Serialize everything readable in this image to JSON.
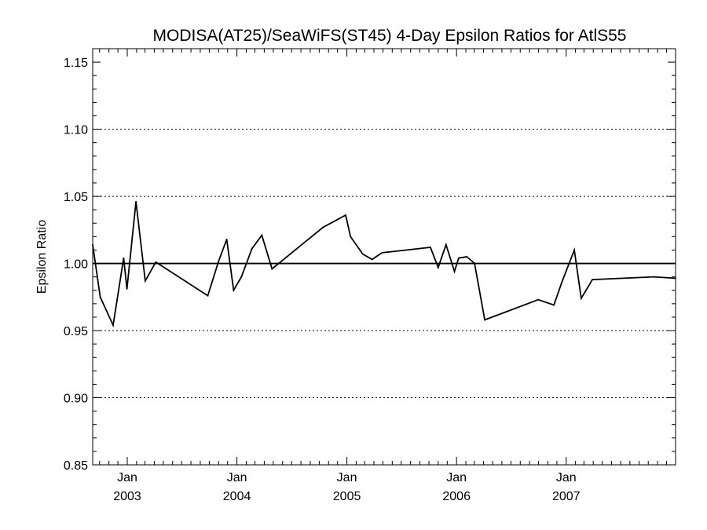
{
  "chart_data": {
    "type": "line",
    "title": "MODISA(AT25)/SeaWiFS(ST45) 4-Day Epsilon Ratios for AtlS55",
    "ylabel": "Epsilon Ratio",
    "xlabel": "",
    "ylim": [
      0.85,
      1.16
    ],
    "xlim": [
      "2002-09-08",
      "2007-12-31"
    ],
    "yticks": [
      "0.85",
      "0.90",
      "0.95",
      "1.00",
      "1.05",
      "1.10",
      "1.15"
    ],
    "xticks": [
      {
        "date": "2003-01-01",
        "month": "Jan",
        "year": "2003"
      },
      {
        "date": "2004-01-01",
        "month": "Jan",
        "year": "2004"
      },
      {
        "date": "2005-01-01",
        "month": "Jan",
        "year": "2005"
      },
      {
        "date": "2006-01-01",
        "month": "Jan",
        "year": "2006"
      },
      {
        "date": "2007-01-01",
        "month": "Jan",
        "year": "2007"
      }
    ],
    "grid": {
      "horizontal_dotted": [
        0.9,
        0.95,
        1.05,
        1.1
      ]
    },
    "reference_line": 1.0,
    "series": [
      {
        "points": [
          [
            "2002-09-08",
            1.014
          ],
          [
            "2002-10-03",
            0.975
          ],
          [
            "2002-11-15",
            0.954
          ],
          [
            "2002-12-20",
            1.004
          ],
          [
            "2002-12-31",
            0.981
          ],
          [
            "2003-01-30",
            1.046
          ],
          [
            "2003-03-02",
            0.987
          ],
          [
            "2003-04-06",
            1.001
          ],
          [
            "2003-09-26",
            0.976
          ],
          [
            "2003-10-31",
            1.001
          ],
          [
            "2003-11-28",
            1.018
          ],
          [
            "2003-12-21",
            0.98
          ],
          [
            "2004-01-16",
            0.99
          ],
          [
            "2004-02-20",
            1.011
          ],
          [
            "2004-03-24",
            1.021
          ],
          [
            "2004-04-27",
            0.996
          ],
          [
            "2004-10-14",
            1.027
          ],
          [
            "2004-12-28",
            1.036
          ],
          [
            "2005-01-13",
            1.02
          ],
          [
            "2005-02-23",
            1.007
          ],
          [
            "2005-03-26",
            1.003
          ],
          [
            "2005-04-28",
            1.008
          ],
          [
            "2005-10-06",
            1.012
          ],
          [
            "2005-11-01",
            0.997
          ],
          [
            "2005-11-27",
            1.014
          ],
          [
            "2005-12-25",
            0.994
          ],
          [
            "2006-01-08",
            1.004
          ],
          [
            "2006-02-04",
            1.005
          ],
          [
            "2006-03-02",
            1.0
          ],
          [
            "2006-04-05",
            0.958
          ],
          [
            "2006-09-30",
            0.973
          ],
          [
            "2006-11-21",
            0.969
          ],
          [
            "2006-12-19",
            0.987
          ],
          [
            "2007-01-28",
            1.01
          ],
          [
            "2007-02-20",
            0.974
          ],
          [
            "2007-03-29",
            0.988
          ],
          [
            "2007-10-19",
            0.99
          ],
          [
            "2007-12-31",
            0.989
          ]
        ]
      }
    ]
  }
}
